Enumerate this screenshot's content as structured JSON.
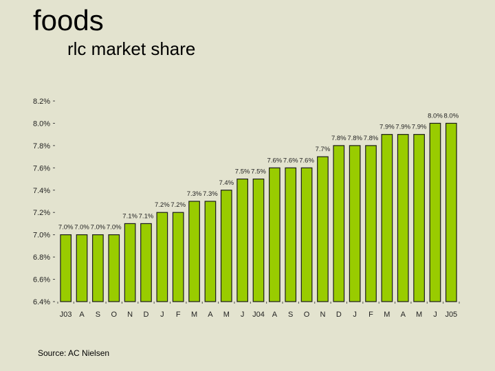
{
  "title": "foods",
  "subtitle": "rlc market share",
  "source": "Source:  AC Nielsen",
  "chart_data": {
    "type": "bar",
    "title": "rlc market share",
    "xlabel": "",
    "ylabel": "",
    "ylim": [
      6.4,
      8.2
    ],
    "yticks": [
      "8.2%",
      "8.0%",
      "7.8%",
      "7.6%",
      "7.4%",
      "7.2%",
      "7.0%",
      "6.8%",
      "6.6%",
      "6.4%"
    ],
    "ytick_values": [
      8.2,
      8.0,
      7.8,
      7.6,
      7.4,
      7.2,
      7.0,
      6.8,
      6.6,
      6.4
    ],
    "categories": [
      "J03",
      "A",
      "S",
      "O",
      "N",
      "D",
      "J",
      "F",
      "M",
      "A",
      "M",
      "J",
      "J04",
      "A",
      "S",
      "O",
      "N",
      "D",
      "J",
      "F",
      "M",
      "A",
      "M",
      "J",
      "J05"
    ],
    "values": [
      7.0,
      7.0,
      7.0,
      7.0,
      7.1,
      7.1,
      7.2,
      7.2,
      7.3,
      7.3,
      7.4,
      7.5,
      7.5,
      7.6,
      7.6,
      7.6,
      7.7,
      7.8,
      7.8,
      7.8,
      7.9,
      7.9,
      7.9,
      8.0,
      8.0
    ],
    "data_labels": [
      "7.0%",
      "7.0%",
      "7.0%",
      "7.0%",
      "7.1%",
      "7.1%",
      "7.2%",
      "7.2%",
      "7.3%",
      "7.3%",
      "7.4%",
      "7.5%",
      "7.5%",
      "7.6%",
      "7.6%",
      "7.6%",
      "7.7%",
      "7.8%",
      "7.8%",
      "7.8%",
      "7.9%",
      "7.9%",
      "7.9%",
      "8.0%",
      "8.0%"
    ],
    "bar_color": "#99cc00",
    "bar_stroke": "#1a1a1a",
    "grid": false
  }
}
